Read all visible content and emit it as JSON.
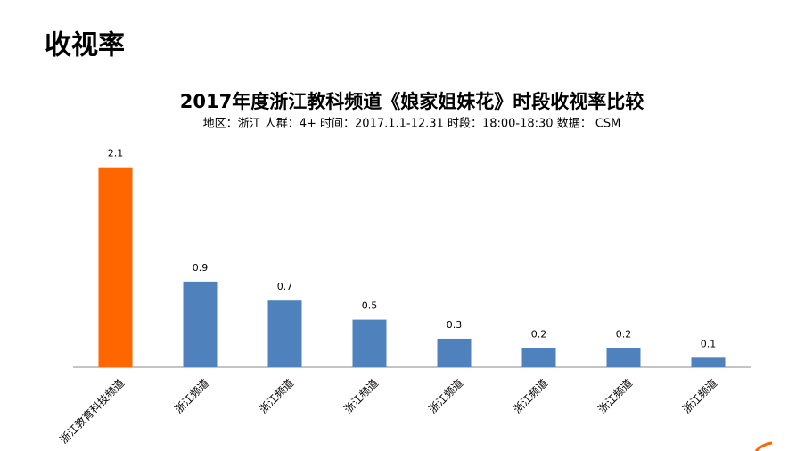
{
  "slide_title": "收视率",
  "chart_data": {
    "type": "bar",
    "title": "2017年度浙江教科频道《娘家姐妹花》时段收视率比较",
    "subtitle": "地区：浙江    人群：4+    时间：2017.1.1-12.31    时段：18:00-18:30     数据： CSM",
    "categories": [
      "浙江教育科技频道",
      "浙江频道",
      "浙江频道",
      "浙江频道",
      "浙江频道",
      "浙江频道",
      "浙江频道",
      "浙江频道"
    ],
    "values": [
      2.1,
      0.9,
      0.7,
      0.5,
      0.3,
      0.2,
      0.2,
      0.1
    ],
    "colors": [
      "#ff6600",
      "#4f81bd",
      "#4f81bd",
      "#4f81bd",
      "#4f81bd",
      "#4f81bd",
      "#4f81bd",
      "#4f81bd"
    ],
    "ylim": [
      0,
      2.2
    ]
  }
}
